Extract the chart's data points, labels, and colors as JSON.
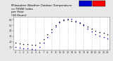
{
  "title": "Milwaukee Weather Outdoor Temperature\nvs THSW Index\nper Hour\n(24 Hours)",
  "bg_color": "#e8e8e8",
  "plot_bg": "#ffffff",
  "hours": [
    0,
    1,
    2,
    3,
    4,
    5,
    6,
    7,
    8,
    9,
    10,
    11,
    12,
    13,
    14,
    15,
    16,
    17,
    18,
    19,
    20,
    21,
    22,
    23
  ],
  "temp_F": [
    18,
    17,
    16,
    16,
    15,
    14,
    18,
    24,
    33,
    42,
    50,
    56,
    59,
    60,
    58,
    56,
    54,
    52,
    48,
    44,
    40,
    38,
    36,
    34
  ],
  "thsw_F": [
    10,
    9,
    8,
    8,
    7,
    6,
    10,
    18,
    28,
    38,
    48,
    55,
    60,
    62,
    61,
    58,
    55,
    50,
    44,
    39,
    34,
    31,
    28,
    26
  ],
  "temp_color": "#000000",
  "thsw_color": "#0000cc",
  "legend_temp_color": "#ff0000",
  "legend_thsw_color": "#0000cc",
  "ylim": [
    5,
    65
  ],
  "ytick_vals": [
    10,
    20,
    30,
    40,
    50,
    60
  ],
  "ytick_labels": [
    "10",
    "20",
    "30",
    "40",
    "50",
    "60"
  ],
  "marker_size": 1.2,
  "grid_color": "#999999",
  "axis_color": "#888888",
  "title_fontsize": 3.0,
  "tick_fontsize": 2.5
}
